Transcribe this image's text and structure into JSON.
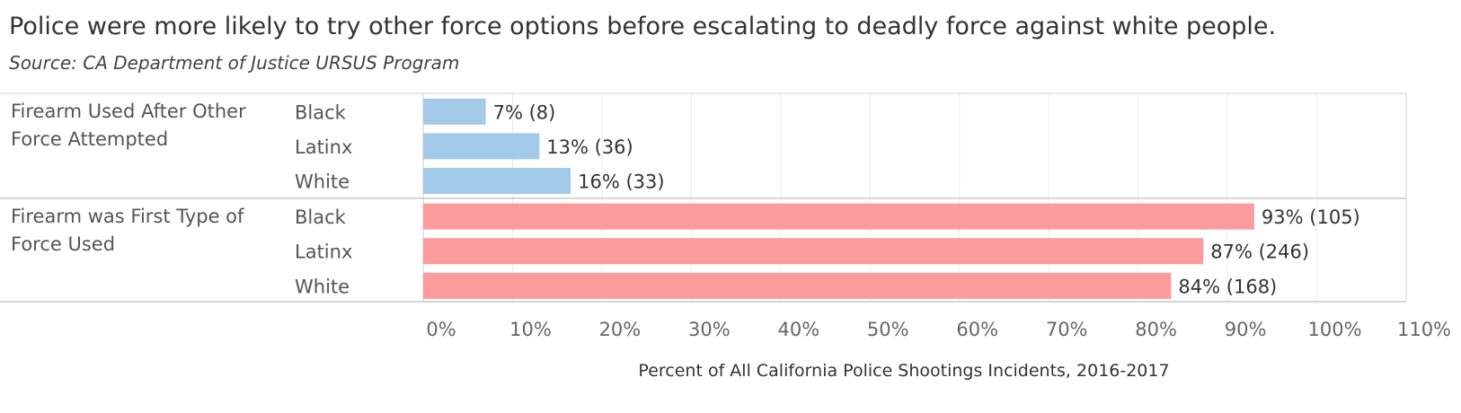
{
  "title": "Police were more likely to try other force options before escalating to deadly force against white people.",
  "subtitle": "Source: CA Department of Justice URSUS Program",
  "colors": {
    "group1": "#a3cbe9",
    "group2": "#fc9b9b"
  },
  "chart_data": {
    "type": "bar",
    "orientation": "horizontal",
    "xlabel": "Percent of All California Police Shootings Incidents, 2016-2017",
    "xlim": [
      0,
      110
    ],
    "xticks": [
      "0%",
      "10%",
      "20%",
      "30%",
      "40%",
      "50%",
      "60%",
      "70%",
      "80%",
      "90%",
      "100%",
      "110%"
    ],
    "grid": true,
    "groups": [
      {
        "label": "Firearm Used After Other Force Attempted",
        "label_lines": [
          "Firearm Used After Other",
          "Force Attempted"
        ],
        "bars": [
          {
            "category": "Black",
            "value": 7,
            "label": "7% (8)"
          },
          {
            "category": "Latinx",
            "value": 13,
            "label": "13% (36)"
          },
          {
            "category": "White",
            "value": 16.5,
            "label": "16% (33)"
          }
        ]
      },
      {
        "label": "Firearm was First Type of Force Used",
        "label_lines": [
          "Firearm was First Type of",
          "Force Used"
        ],
        "bars": [
          {
            "category": "Black",
            "value": 93,
            "label": "93% (105)"
          },
          {
            "category": "Latinx",
            "value": 87.3,
            "label": "87% (246)"
          },
          {
            "category": "White",
            "value": 83.7,
            "label": "84% (168)"
          }
        ]
      }
    ]
  }
}
